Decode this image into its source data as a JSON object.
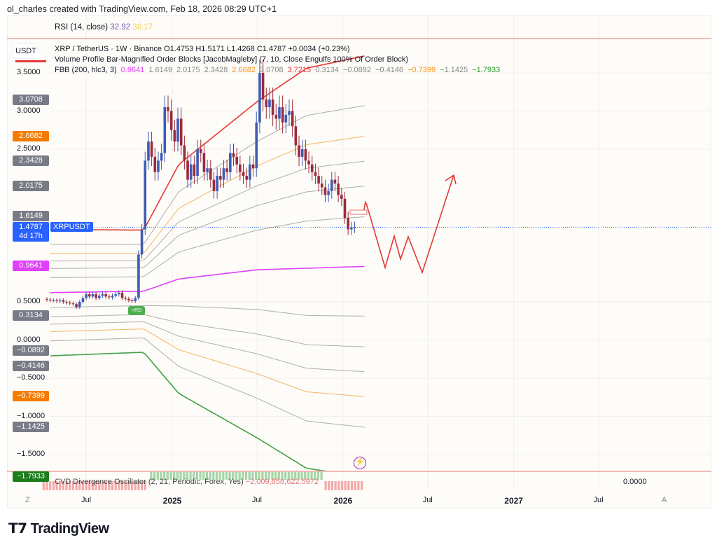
{
  "header": {
    "caption": "ol_charles created with TradingView.com, Feb 18, 2026 08:29 UTC+1"
  },
  "rsi": {
    "label": "RSI (14, close)",
    "value1": "32.92",
    "value2": "38.17",
    "color1": "#7e57c2",
    "color2": "#f7d154"
  },
  "legend": {
    "currency": "USDT",
    "symbol_line": "XRP / TetherUS · 1W · Binance  O1.4753  H1.5171  L1.4268  C1.4787  +0.0034 (+0.23%)",
    "order_blocks": "Volume Profile Bar-Magnified Order Blocks [JacobMagleby] (7, 10, Close Engulfs 100% Of Order Block)",
    "fbb_label": "FBB (200, hlc3, 3)",
    "fbb_values": [
      {
        "v": "0.9641",
        "c": "#e040fb"
      },
      {
        "v": "1.6149",
        "c": "#888"
      },
      {
        "v": "2.0175",
        "c": "#888"
      },
      {
        "v": "2.3428",
        "c": "#888"
      },
      {
        "v": "2.6682",
        "c": "#f7931a"
      },
      {
        "v": "3.0708",
        "c": "#888"
      },
      {
        "v": "3.7215",
        "c": "#e53935"
      },
      {
        "v": "0.3134",
        "c": "#888"
      },
      {
        "v": "−0.0892",
        "c": "#888"
      },
      {
        "v": "−0.4146",
        "c": "#888"
      },
      {
        "v": "−0.7399",
        "c": "#f7931a"
      },
      {
        "v": "−1.1425",
        "c": "#888"
      },
      {
        "v": "−1.7933",
        "c": "#2e9e2e"
      }
    ]
  },
  "price_labels": [
    {
      "v": "3.0708",
      "c": "#787b86",
      "p": 3.0708
    },
    {
      "v": "2.6682",
      "c": "#f57c00",
      "p": 2.6682
    },
    {
      "v": "2.3428",
      "c": "#787b86",
      "p": 2.3428
    },
    {
      "v": "2.0175",
      "c": "#787b86",
      "p": 2.0175
    },
    {
      "v": "1.6149",
      "c": "#787b86",
      "p": 1.6149
    },
    {
      "v": "0.9641",
      "c": "#e040fb",
      "p": 0.9641
    },
    {
      "v": "0.3134",
      "c": "#787b86",
      "p": 0.3134
    },
    {
      "v": "−0.0892",
      "c": "#787b86",
      "p": -0.0892
    },
    {
      "v": "−0.4146",
      "c": "#787b86",
      "p": -0.4146
    },
    {
      "v": "−0.7399",
      "c": "#f57c00",
      "p": -0.7399
    },
    {
      "v": "−1.1425",
      "c": "#787b86",
      "p": -1.1425
    },
    {
      "v": "−1.7933",
      "c": "#1b7d1b",
      "p": -1.7933
    }
  ],
  "last_price": {
    "value": "1.4787",
    "countdown": "4d 17h",
    "symbol": "XRPUSDT",
    "color": "#2962ff"
  },
  "cvd": {
    "label": "CVD Divergence Oscillator (2, 21, Periodic, Forex, Yes)",
    "value": "−2,009,858,622.5972",
    "zero": "0.0000"
  },
  "rd_badge": "+RD",
  "axis_buttons": {
    "left": "Z",
    "right": "A"
  },
  "brand": "TradingView",
  "chart_data": {
    "type": "candlestick",
    "title": "XRP / TetherUS · 1W · Binance",
    "y_ticks": [
      "3.5000",
      "3.0000",
      "2.5000",
      "0.5000",
      "0.0000",
      "−0.5000",
      "−1.0000",
      "−1.5000"
    ],
    "y_tick_values": [
      3.5,
      3.0,
      2.5,
      0.5,
      0.0,
      -0.5,
      -1.0,
      -1.5
    ],
    "ylim": [
      -1.8,
      3.7
    ],
    "x_ticks": [
      {
        "t": "Jul",
        "d": "2024-07-01",
        "bold": false
      },
      {
        "t": "2025",
        "d": "2025-01-01",
        "bold": true
      },
      {
        "t": "Jul",
        "d": "2025-07-01",
        "bold": false
      },
      {
        "t": "2026",
        "d": "2026-01-01",
        "bold": true
      },
      {
        "t": "Jul",
        "d": "2026-07-01",
        "bold": false
      },
      {
        "t": "2027",
        "d": "2027-01-01",
        "bold": true
      },
      {
        "t": "Jul",
        "d": "2027-07-01",
        "bold": false
      }
    ],
    "first_candle": "2024-04-08",
    "interval": "1W",
    "closes": [
      0.53,
      0.52,
      0.52,
      0.51,
      0.52,
      0.5,
      0.49,
      0.48,
      0.47,
      0.43,
      0.5,
      0.55,
      0.6,
      0.57,
      0.6,
      0.55,
      0.58,
      0.6,
      0.57,
      0.56,
      0.58,
      0.6,
      0.62,
      0.55,
      0.54,
      0.52,
      0.51,
      0.55,
      1.12,
      1.45,
      2.35,
      2.6,
      2.4,
      2.2,
      2.35,
      2.45,
      3.05,
      3.0,
      2.75,
      2.6,
      2.9,
      2.55,
      2.35,
      2.1,
      2.3,
      2.15,
      2.5,
      2.45,
      2.2,
      2.25,
      2.1,
      1.95,
      2.15,
      2.1,
      2.25,
      2.2,
      2.45,
      2.4,
      2.3,
      2.2,
      2.15,
      2.1,
      2.3,
      2.25,
      2.85,
      3.5,
      3.15,
      3.05,
      3.15,
      2.95,
      2.9,
      3.05,
      2.85,
      2.95,
      3.0,
      2.8,
      2.55,
      2.4,
      2.5,
      2.35,
      2.3,
      2.2,
      2.15,
      2.05,
      2.0,
      1.9,
      1.95,
      2.1,
      2.05,
      1.9,
      1.85,
      1.6,
      1.45,
      1.4753,
      1.4787
    ],
    "fbb": {
      "fib_levels": [
        0.236,
        0.382,
        0.5,
        0.618,
        0.764,
        1
      ],
      "basis": [
        [
          "2024-04-01",
          0.62
        ],
        [
          "2024-11-01",
          0.64
        ],
        [
          "2025-01-15",
          0.8
        ],
        [
          "2025-07-01",
          0.92
        ],
        [
          "2026-02-16",
          0.9641
        ]
      ],
      "width_3sd": [
        [
          "2024-04-01",
          0.83
        ],
        [
          "2024-11-01",
          0.8
        ],
        [
          "2025-01-15",
          1.5
        ],
        [
          "2025-07-01",
          2.2
        ],
        [
          "2025-10-15",
          2.62
        ],
        [
          "2026-02-16",
          2.7574
        ]
      ],
      "colors": {
        "basis": "#e040fb",
        "upper_1": "#e53935",
        "lower_1": "#43a047",
        "fib_0.618": "#f5b461",
        "other": "#b0aeaa"
      }
    },
    "cvd_signs": {
      "negative": [
        [
          "2024-04-01",
          "2024-11-10"
        ],
        [
          "2025-11-25",
          "2026-02-16"
        ]
      ],
      "positive": [
        [
          "2024-11-17",
          "2025-11-20"
        ]
      ]
    }
  }
}
